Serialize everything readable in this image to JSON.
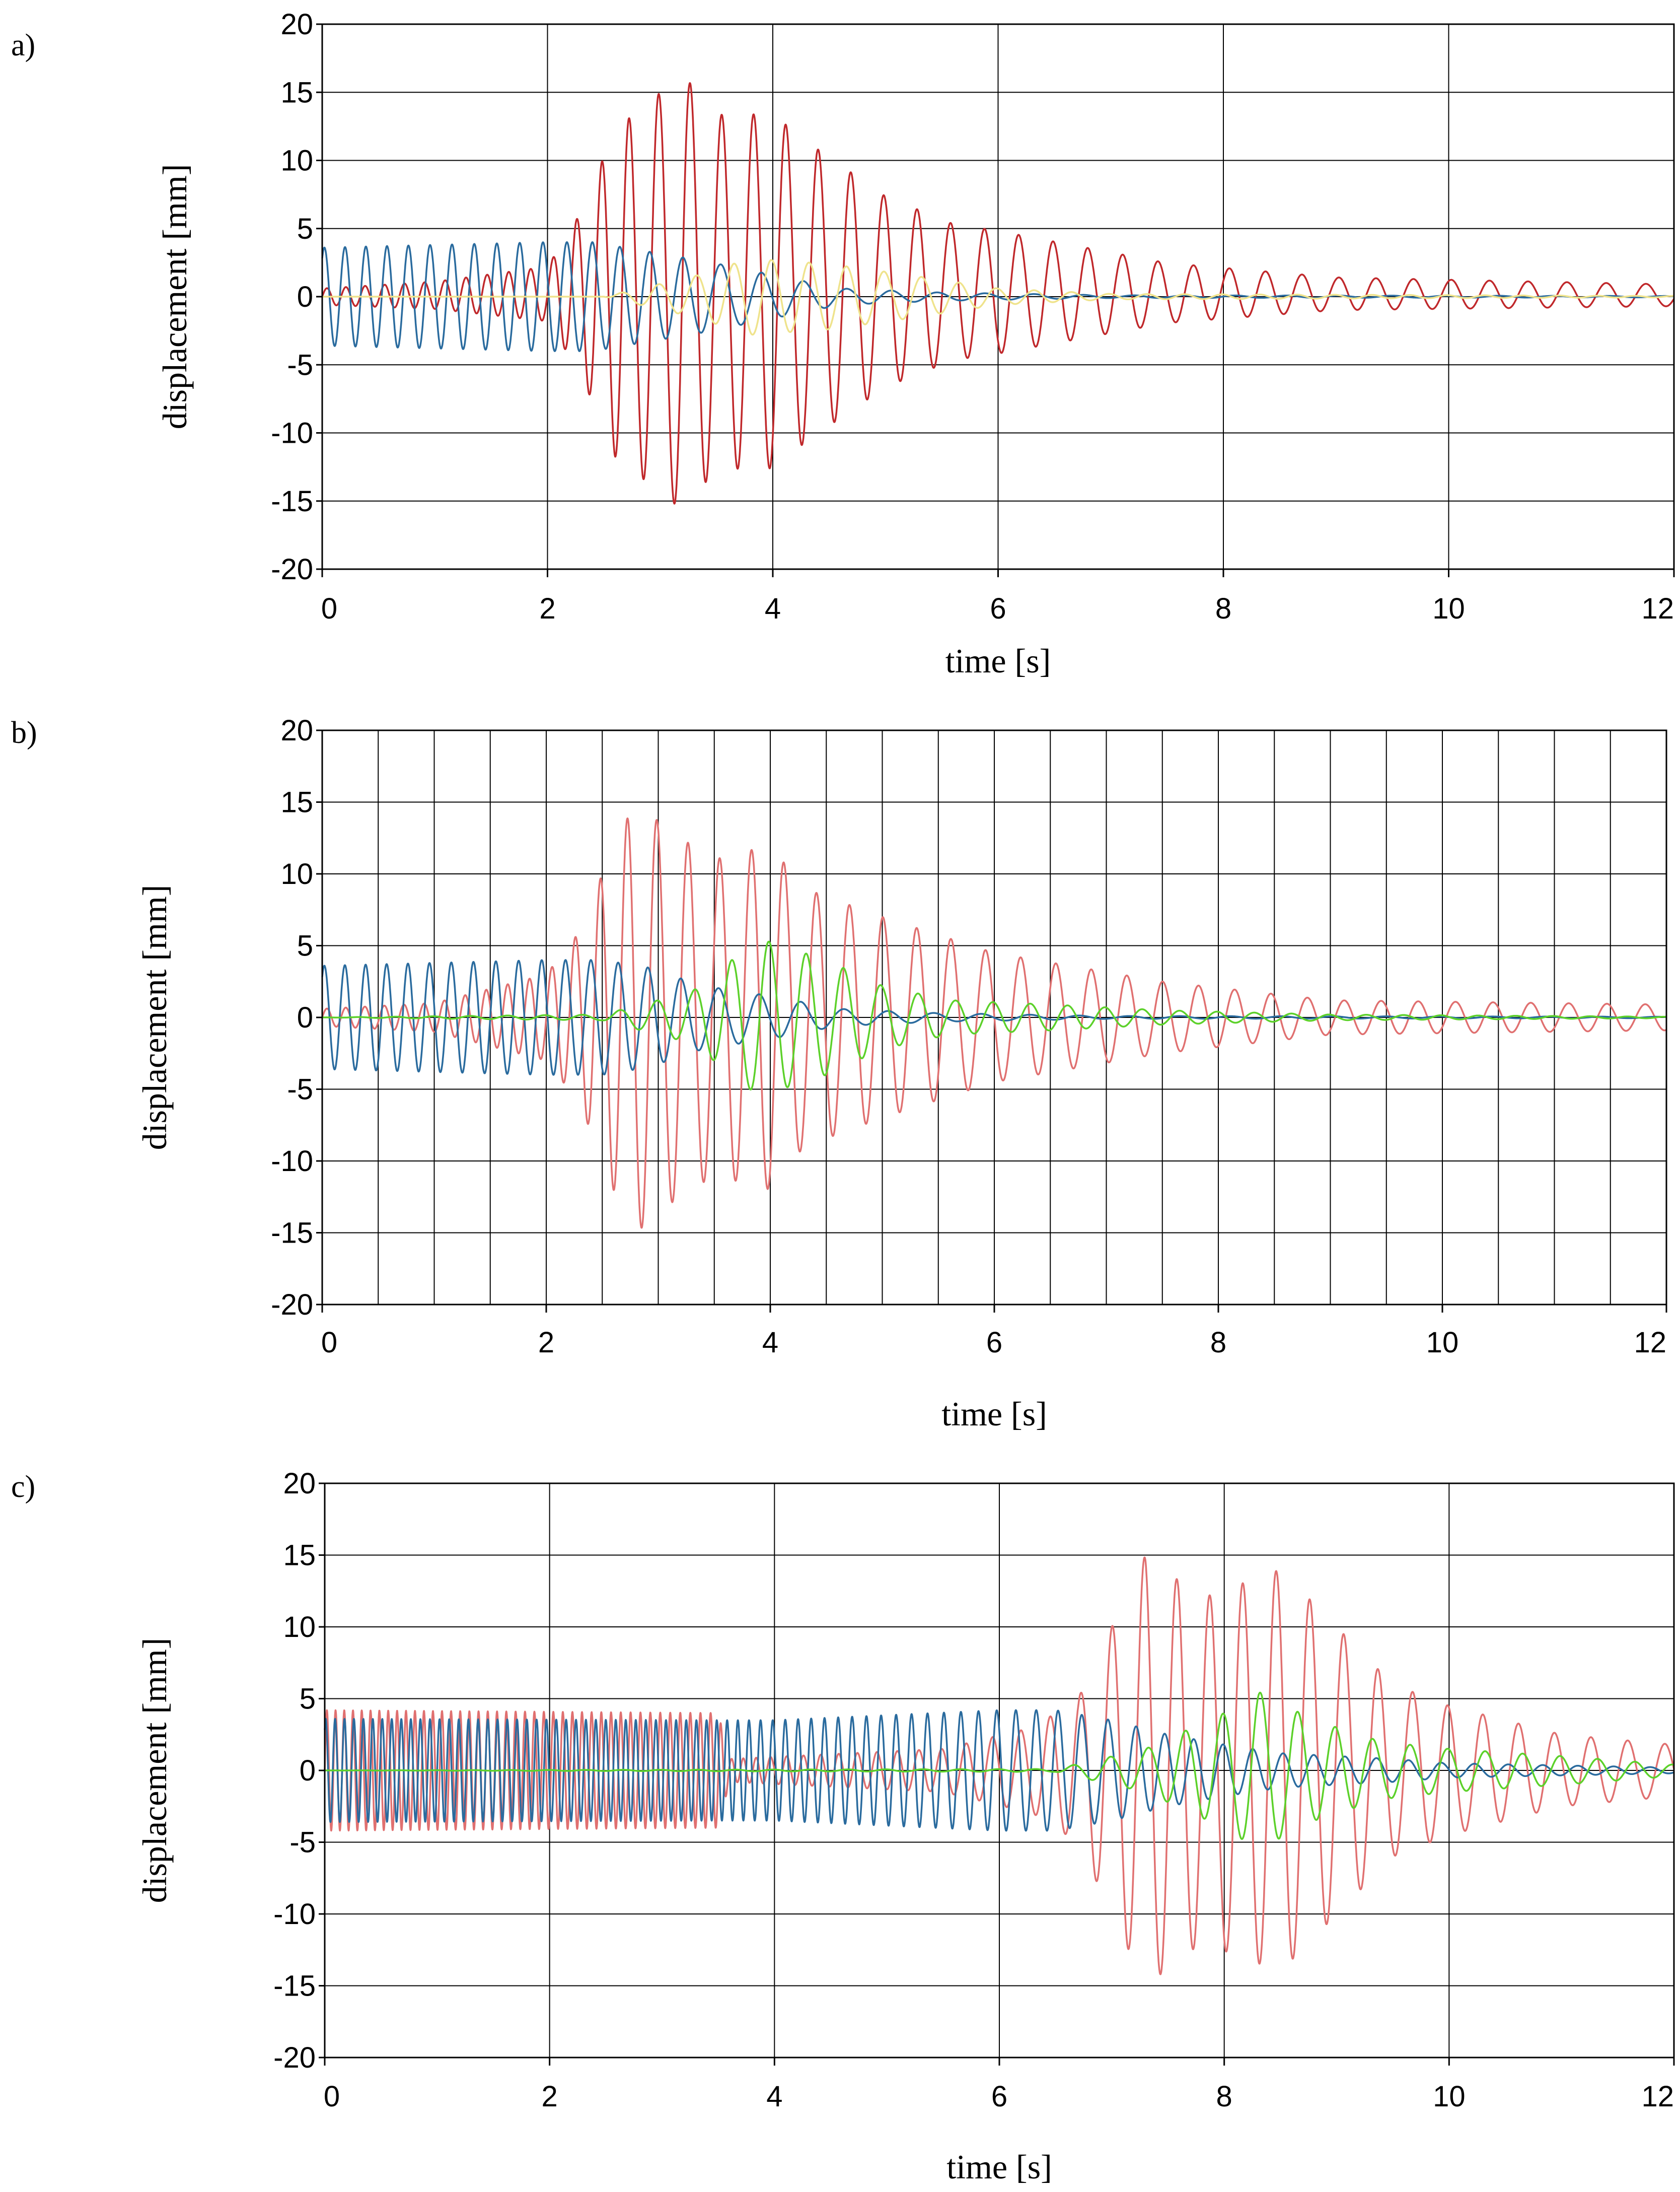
{
  "colors": {
    "red": "#c0282b",
    "salmon": "#e07070",
    "blue": "#2a6b9e",
    "navy": "#2b3f8c",
    "green": "#5cd12a",
    "yellow": "#efe38c",
    "grid": "#000000"
  },
  "chart_data": [
    {
      "type": "line",
      "panel_label": "a)",
      "xlabel": "time [s]",
      "ylabel": "displacement [mm]",
      "xlim": [
        0,
        12
      ],
      "ylim": [
        -20,
        20
      ],
      "xticks": [
        0,
        2,
        4,
        6,
        8,
        10,
        12
      ],
      "xtick_labels": [
        "0",
        "2",
        "4",
        "6",
        "8",
        "10",
        "12"
      ],
      "yticks": [
        20,
        15,
        10,
        5,
        0,
        -5,
        -10,
        -15,
        -20
      ],
      "ytick_labels": [
        "20",
        "15",
        "10",
        "5",
        "0",
        "-5",
        "-10",
        "-15",
        "-20"
      ],
      "vgrid": [
        2,
        4,
        6,
        8,
        10
      ],
      "series": [
        {
          "name": "red",
          "color": "red",
          "envelope": [
            [
              0,
              0.6
            ],
            [
              1,
              1.0
            ],
            [
              2,
              2.0
            ],
            [
              2.3,
              6
            ],
            [
              2.6,
              12
            ],
            [
              2.9,
              14
            ],
            [
              3.2,
              16
            ],
            [
              3.5,
              13
            ],
            [
              4.0,
              13
            ],
            [
              4.3,
              11
            ],
            [
              5.0,
              7
            ],
            [
              5.6,
              5
            ],
            [
              6.0,
              4.5
            ],
            [
              7.5,
              2.2
            ],
            [
              9,
              1.2
            ],
            [
              12,
              0.8
            ]
          ],
          "freq": [
            [
              0,
              6
            ],
            [
              2,
              5
            ],
            [
              3,
              3.6
            ],
            [
              6,
              3.3
            ],
            [
              12,
              2.8
            ]
          ],
          "offset": [
            [
              0,
              0
            ],
            [
              4,
              0.4
            ],
            [
              12,
              0.1
            ]
          ]
        },
        {
          "name": "blue",
          "color": "blue",
          "envelope": [
            [
              0,
              3.6
            ],
            [
              2,
              4.0
            ],
            [
              2.4,
              4.0
            ],
            [
              2.9,
              3.3
            ],
            [
              3.4,
              2.6
            ],
            [
              4.0,
              1.6
            ],
            [
              4.6,
              0.6
            ],
            [
              5.5,
              0.3
            ],
            [
              7,
              0.1
            ],
            [
              12,
              0.05
            ]
          ],
          "freq": [
            [
              0,
              5.5
            ],
            [
              2,
              4.8
            ],
            [
              3.5,
              2.8
            ],
            [
              6,
              2.3
            ],
            [
              12,
              2
            ]
          ],
          "offset": [
            [
              0,
              0
            ],
            [
              12,
              0
            ]
          ]
        },
        {
          "name": "yellow",
          "color": "yellow",
          "envelope": [
            [
              0,
              0
            ],
            [
              2.5,
              0
            ],
            [
              3.3,
              1.5
            ],
            [
              3.8,
              2.8
            ],
            [
              4.5,
              2.4
            ],
            [
              5.2,
              1.6
            ],
            [
              6,
              0.6
            ],
            [
              7,
              0.2
            ],
            [
              12,
              0.05
            ]
          ],
          "freq": [
            [
              0,
              3
            ],
            [
              12,
              3
            ]
          ],
          "offset": [
            [
              0,
              0
            ],
            [
              12,
              0
            ]
          ]
        }
      ]
    },
    {
      "type": "line",
      "panel_label": "b)",
      "xlabel": "time [s]",
      "ylabel": "displacement [mm]",
      "xlim": [
        0,
        12
      ],
      "ylim": [
        -20,
        20
      ],
      "xticks": [
        0,
        2,
        4,
        6,
        8,
        10,
        12
      ],
      "xtick_labels": [
        "0",
        "2",
        "4",
        "6",
        "8",
        "10",
        "12"
      ],
      "yticks": [
        20,
        15,
        10,
        5,
        0,
        -5,
        -10,
        -15,
        -20
      ],
      "ytick_labels": [
        "20",
        "15",
        "10",
        "5",
        "0",
        "-5",
        "-10",
        "-15",
        "-20"
      ],
      "vgrid": [
        0.5,
        1,
        1.5,
        2,
        2.5,
        3,
        3.5,
        4,
        4.5,
        5,
        5.5,
        6,
        6.5,
        7,
        7.5,
        8,
        8.5,
        9,
        9.5,
        10,
        10.5,
        11,
        11.5
      ],
      "series": [
        {
          "name": "salmon",
          "color": "salmon",
          "envelope": [
            [
              0,
              0.6
            ],
            [
              1,
              1.0
            ],
            [
              2,
              3.0
            ],
            [
              2.3,
              6
            ],
            [
              2.6,
              12
            ],
            [
              2.8,
              15
            ],
            [
              3.1,
              13
            ],
            [
              3.5,
              11
            ],
            [
              4.0,
              12
            ],
            [
              4.3,
              9
            ],
            [
              5.0,
              7
            ],
            [
              5.6,
              5.5
            ],
            [
              6.0,
              4.5
            ],
            [
              7.5,
              2.5
            ],
            [
              9,
              1.2
            ],
            [
              12,
              0.9
            ]
          ],
          "freq": [
            [
              0,
              6
            ],
            [
              2,
              5
            ],
            [
              3,
              3.6
            ],
            [
              6,
              3.2
            ],
            [
              12,
              2.9
            ]
          ],
          "offset": [
            [
              0,
              0
            ],
            [
              12,
              0
            ]
          ]
        },
        {
          "name": "blue",
          "color": "blue",
          "envelope": [
            [
              0,
              3.6
            ],
            [
              2,
              4.0
            ],
            [
              2.5,
              4.0
            ],
            [
              2.9,
              3.5
            ],
            [
              3.4,
              2.2
            ],
            [
              4.0,
              1.5
            ],
            [
              4.6,
              0.6
            ],
            [
              5.5,
              0.3
            ],
            [
              7,
              0.1
            ],
            [
              12,
              0.05
            ]
          ],
          "freq": [
            [
              0,
              5.5
            ],
            [
              2,
              4.8
            ],
            [
              3.5,
              2.8
            ],
            [
              6,
              2.3
            ],
            [
              12,
              2
            ]
          ],
          "offset": [
            [
              0,
              0
            ],
            [
              12,
              0
            ]
          ]
        },
        {
          "name": "green",
          "color": "green",
          "envelope": [
            [
              0,
              0
            ],
            [
              2.5,
              0.2
            ],
            [
              3.3,
              1.8
            ],
            [
              3.9,
              5.5
            ],
            [
              4.5,
              4
            ],
            [
              5.0,
              2.2
            ],
            [
              5.6,
              1.2
            ],
            [
              6.5,
              0.9
            ],
            [
              7.5,
              0.5
            ],
            [
              9,
              0.2
            ],
            [
              12,
              0.05
            ]
          ],
          "freq": [
            [
              0,
              3
            ],
            [
              12,
              3
            ]
          ],
          "offset": [
            [
              0,
              0
            ],
            [
              12,
              0
            ]
          ]
        }
      ]
    },
    {
      "type": "line",
      "panel_label": "c)",
      "xlabel": "time [s]",
      "ylabel": "displacement [mm]",
      "xlim": [
        0,
        12
      ],
      "ylim": [
        -20,
        20
      ],
      "xticks": [
        0,
        2,
        4,
        6,
        8,
        10,
        12
      ],
      "xtick_labels": [
        "0",
        "2",
        "4",
        "6",
        "8",
        "10",
        "12"
      ],
      "yticks": [
        20,
        15,
        10,
        5,
        0,
        -5,
        -10,
        -15,
        -20
      ],
      "ytick_labels": [
        "20",
        "15",
        "10",
        "5",
        "0",
        "-5",
        "-10",
        "-15",
        "-20"
      ],
      "vgrid": [
        2,
        4,
        6,
        8,
        10
      ],
      "series": [
        {
          "name": "salmon",
          "color": "salmon",
          "envelope": [
            [
              0,
              4.2
            ],
            [
              3.5,
              4.0
            ],
            [
              3.6,
              0.8
            ],
            [
              5.5,
              1.5
            ],
            [
              6.3,
              3
            ],
            [
              6.7,
              5
            ],
            [
              7.0,
              10
            ],
            [
              7.3,
              15
            ],
            [
              7.8,
              12
            ],
            [
              8.5,
              14
            ],
            [
              9.0,
              10
            ],
            [
              9.5,
              6
            ],
            [
              10,
              4.5
            ],
            [
              11,
              2.5
            ],
            [
              12,
              1.8
            ]
          ],
          "freq": [
            [
              0,
              13
            ],
            [
              3.5,
              11
            ],
            [
              4,
              7
            ],
            [
              6,
              4
            ],
            [
              7,
              3.5
            ],
            [
              12,
              3
            ]
          ],
          "offset": [
            [
              0,
              0
            ],
            [
              12,
              0
            ]
          ]
        },
        {
          "name": "blue",
          "color": "blue",
          "envelope": [
            [
              0,
              3.6
            ],
            [
              3.5,
              3.5
            ],
            [
              4.0,
              3.5
            ],
            [
              6.0,
              4.2
            ],
            [
              6.5,
              4.2
            ],
            [
              7.0,
              3.5
            ],
            [
              7.5,
              2.5
            ],
            [
              8.0,
              1.8
            ],
            [
              8.5,
              1.2
            ],
            [
              9.5,
              0.8
            ],
            [
              10,
              0.5
            ],
            [
              12,
              0.2
            ]
          ],
          "freq": [
            [
              0,
              12
            ],
            [
              3.5,
              11
            ],
            [
              4,
              9
            ],
            [
              6,
              6
            ],
            [
              7,
              4
            ],
            [
              12,
              3
            ]
          ],
          "offset": [
            [
              0,
              0
            ],
            [
              12,
              0
            ]
          ]
        },
        {
          "name": "green",
          "color": "green",
          "envelope": [
            [
              0,
              0
            ],
            [
              6.5,
              0.1
            ],
            [
              7.3,
              1.5
            ],
            [
              8.0,
              4
            ],
            [
              8.3,
              5.5
            ],
            [
              8.8,
              3.5
            ],
            [
              9.4,
              2.0
            ],
            [
              10,
              1.5
            ],
            [
              11,
              1.0
            ],
            [
              12,
              0.4
            ]
          ],
          "freq": [
            [
              0,
              3
            ],
            [
              12,
              3
            ]
          ],
          "offset": [
            [
              0,
              0
            ],
            [
              12,
              0
            ]
          ]
        }
      ]
    }
  ]
}
